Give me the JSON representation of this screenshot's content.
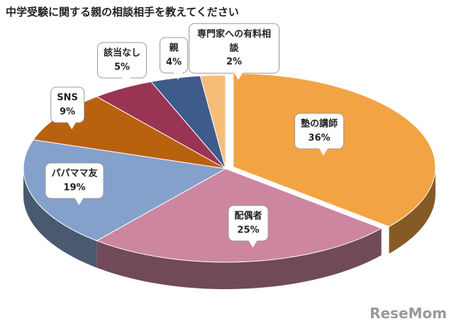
{
  "chart_data": {
    "type": "pie3d",
    "title": "中学受験に関する親の相談相手を教えてください",
    "categories": [
      "塾の講師",
      "配偶者",
      "パパママ友",
      "SNS",
      "該当なし",
      "親",
      "専門家への有料相談"
    ],
    "values": [
      36,
      25,
      19,
      9,
      5,
      4,
      2
    ],
    "value_labels": [
      "36%",
      "25%",
      "19%",
      "9%",
      "5%",
      "4%",
      "2%"
    ],
    "colors": [
      "#f2a444",
      "#cc86a0",
      "#84a1cc",
      "#b8610f",
      "#9a3453",
      "#3e5b8c",
      "#f6bd79"
    ],
    "watermark": "ReseMom"
  }
}
